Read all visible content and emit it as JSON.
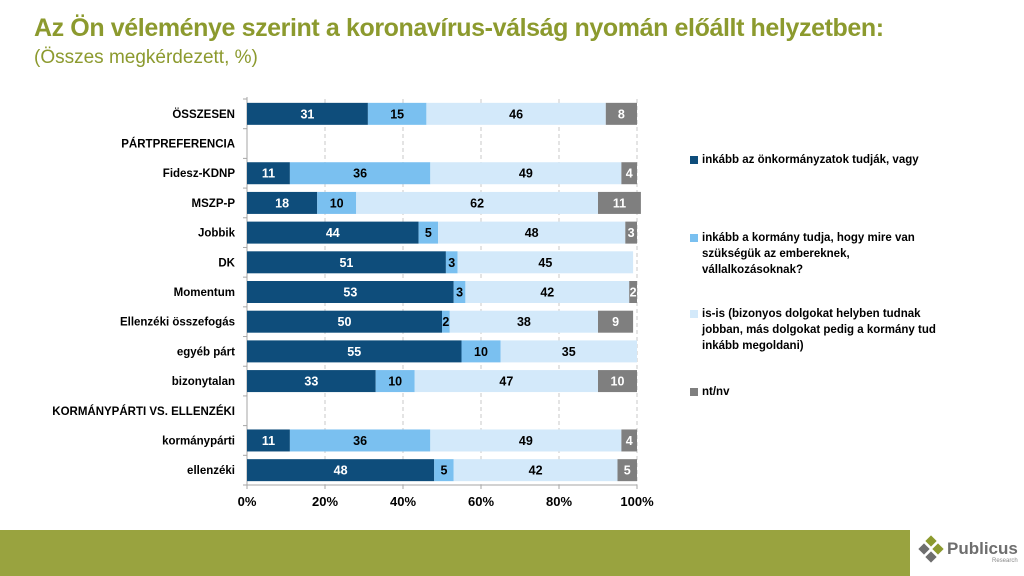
{
  "header": {
    "title": "Az Ön véleménye szerint a koronavírus-válság nyomán előállt helyzetben:",
    "subtitle": "(Összes megkérdezett, %)"
  },
  "colors": {
    "title": "#8C9A2E",
    "footer": "#99A33F",
    "series": [
      "#0E4D7B",
      "#7AC0F0",
      "#D3E9FA",
      "#7F7F7F"
    ],
    "label_colors": [
      "#FFFFFF",
      "#000000",
      "#000000",
      "#FFFFFF"
    ]
  },
  "legend": {
    "items": [
      {
        "label": "inkább az önkormányzatok tudják, vagy"
      },
      {
        "label": "inkább a kormány tudja, hogy mire van szükségük az embereknek, vállalkozásoknak?"
      },
      {
        "label": "is-is (bizonyos dolgokat helyben tudnak jobban, más dolgokat pedig a kormány tud inkább megoldani)"
      },
      {
        "label": "nt/nv"
      }
    ]
  },
  "logo": {
    "name": "Publicus",
    "sub": "Research"
  },
  "chart_data": {
    "type": "bar",
    "orientation": "horizontal",
    "stacked": "percent",
    "title": "Az Ön véleménye szerint a koronavírus-válság nyomán előállt helyzetben:",
    "subtitle": "(Összes megkérdezett, %)",
    "xlabel": "",
    "ylabel": "",
    "xlim": [
      0,
      100
    ],
    "xticks": [
      "0%",
      "20%",
      "40%",
      "60%",
      "80%",
      "100%"
    ],
    "grid": "vertical dashed",
    "legend_position": "right",
    "categories": [
      "ÖSSZESEN",
      "PÁRTPREFERENCIA",
      "Fidesz-KDNP",
      "MSZP-P",
      "Jobbik",
      "DK",
      "Momentum",
      "Ellenzéki összefogás",
      "egyéb párt",
      "bizonytalan",
      "KORMÁNYPÁRTI VS. ELLENZÉKI",
      "kormánypárti",
      "ellenzéki"
    ],
    "series": [
      {
        "name": "inkább az önkormányzatok tudják, vagy",
        "values": [
          31,
          null,
          11,
          18,
          44,
          51,
          53,
          50,
          55,
          33,
          null,
          11,
          48
        ]
      },
      {
        "name": "inkább a kormány tudja, hogy mire van szükségük az embereknek, vállalkozásoknak?",
        "values": [
          15,
          null,
          36,
          10,
          5,
          3,
          3,
          2,
          10,
          10,
          null,
          36,
          5
        ]
      },
      {
        "name": "is-is (bizonyos dolgokat helyben tudnak jobban, más dolgokat pedig a kormány tud inkább megoldani)",
        "values": [
          46,
          null,
          49,
          62,
          48,
          45,
          42,
          38,
          35,
          47,
          null,
          49,
          42
        ]
      },
      {
        "name": "nt/nv",
        "values": [
          8,
          null,
          4,
          11,
          3,
          null,
          2,
          9,
          null,
          10,
          null,
          4,
          5
        ]
      }
    ]
  }
}
